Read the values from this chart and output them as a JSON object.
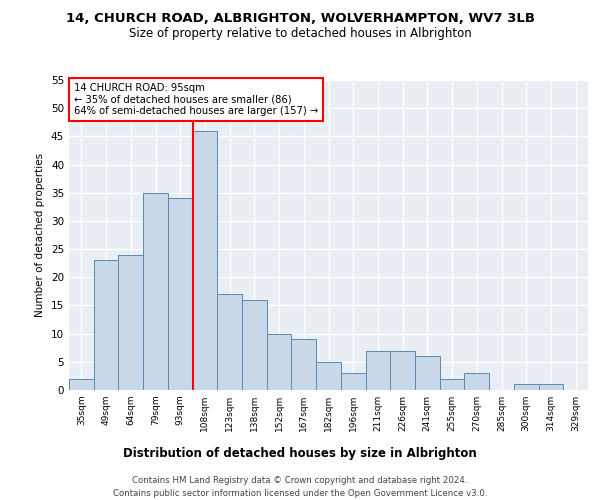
{
  "title1": "14, CHURCH ROAD, ALBRIGHTON, WOLVERHAMPTON, WV7 3LB",
  "title2": "Size of property relative to detached houses in Albrighton",
  "xlabel": "Distribution of detached houses by size in Albrighton",
  "ylabel": "Number of detached properties",
  "categories": [
    "35sqm",
    "49sqm",
    "64sqm",
    "79sqm",
    "93sqm",
    "108sqm",
    "123sqm",
    "138sqm",
    "152sqm",
    "167sqm",
    "182sqm",
    "196sqm",
    "211sqm",
    "226sqm",
    "241sqm",
    "255sqm",
    "270sqm",
    "285sqm",
    "300sqm",
    "314sqm",
    "329sqm"
  ],
  "values": [
    2,
    23,
    24,
    35,
    34,
    46,
    17,
    16,
    10,
    9,
    5,
    3,
    7,
    7,
    6,
    2,
    3,
    0,
    1,
    1,
    0
  ],
  "bar_color": "#c8d8e8",
  "bar_edge_color": "#5a8ab0",
  "red_line_x": 4.5,
  "annotation_title": "14 CHURCH ROAD: 95sqm",
  "annotation_line1": "← 35% of detached houses are smaller (86)",
  "annotation_line2": "64% of semi-detached houses are larger (157) →",
  "annotation_box_color": "white",
  "annotation_box_edge": "red",
  "ylim": [
    0,
    55
  ],
  "yticks": [
    0,
    5,
    10,
    15,
    20,
    25,
    30,
    35,
    40,
    45,
    50,
    55
  ],
  "footer1": "Contains HM Land Registry data © Crown copyright and database right 2024.",
  "footer2": "Contains public sector information licensed under the Open Government Licence v3.0.",
  "bg_color": "#e8eef4",
  "grid_color": "#ffffff"
}
